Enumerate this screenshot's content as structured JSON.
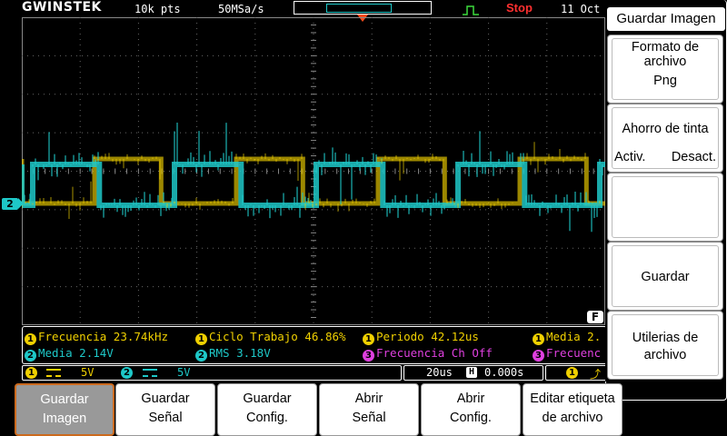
{
  "header": {
    "brand": "GWINSTEK",
    "record_length": "10k pts",
    "sample_rate": "50MSa/s",
    "run_state": "Stop",
    "date": "11 Oct"
  },
  "colors": {
    "ch1": "#f0d000",
    "ch2": "#1ec8c8",
    "ch3": "#e040e0",
    "stop": "#ff3030",
    "trigger_marker": "#ff4a1a",
    "active_key_border": "#cc6a1e"
  },
  "channel_marker": "2",
  "f_badge": "F",
  "measurements": {
    "row1": [
      {
        "ch": "1",
        "text": "Frecuencia",
        "value": "23.74kHz"
      },
      {
        "ch": "1",
        "text": "Ciclo Trabajo",
        "value": "46.86%"
      },
      {
        "ch": "1",
        "text": "Periodo",
        "value": "42.12us"
      },
      {
        "ch": "1",
        "text": "Media",
        "value": "2."
      }
    ],
    "row2": [
      {
        "ch": "2",
        "text": "Media",
        "value": "2.14V"
      },
      {
        "ch": "2",
        "text": "RMS",
        "value": "3.18V"
      },
      {
        "ch": "3",
        "text": "Frecuencia Ch Off",
        "value": ""
      },
      {
        "ch": "3",
        "text": "Frecuenc",
        "value": ""
      }
    ]
  },
  "channel_status": {
    "ch1": {
      "num": "1",
      "scale": "5V"
    },
    "ch2": {
      "num": "2",
      "scale": "5V"
    }
  },
  "timebase": {
    "scale": "20us",
    "h_icon": "H",
    "position": "0.000s"
  },
  "trigger_status": {
    "num": "1"
  },
  "side_menu": {
    "title": "Guardar Imagen",
    "format": {
      "label": "Formato de archivo",
      "value": "Png"
    },
    "ink_saver": {
      "label": "Ahorro de tinta",
      "on": "Activ.",
      "off": "Desact."
    },
    "blank": "",
    "save": "Guardar",
    "utilities": "Utilerias de archivo"
  },
  "soft_keys": [
    {
      "line1": "Guardar",
      "line2": "Imagen"
    },
    {
      "line1": "Guardar",
      "line2": "Señal"
    },
    {
      "line1": "Guardar",
      "line2": "Config."
    },
    {
      "line1": "Abrir",
      "line2": "Señal"
    },
    {
      "line1": "Abrir",
      "line2": "Config."
    },
    {
      "line1": "Editar etiqueta",
      "line2": "de archivo"
    }
  ]
}
